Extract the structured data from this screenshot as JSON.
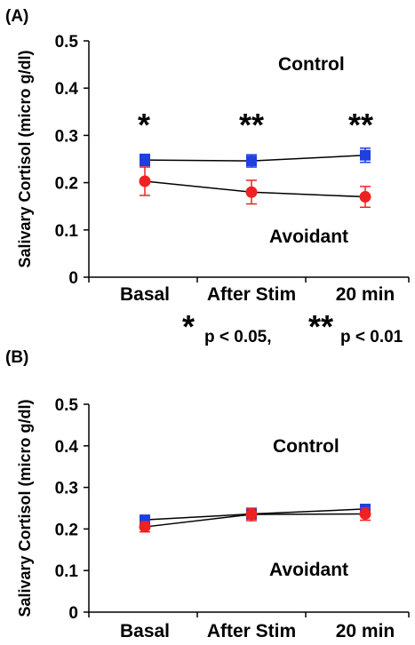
{
  "chart_data": [
    {
      "panel_label": "(A)",
      "type": "line",
      "categories": [
        "Basal",
        "After Stim",
        "20 min"
      ],
      "ylabel": "Salivary Cortisol (micro g/dl)",
      "ylim": [
        0,
        0.5
      ],
      "yticks": [
        "0",
        "0.1",
        "0.2",
        "0.3",
        "0.4",
        "0.5"
      ],
      "series": [
        {
          "name": "Control",
          "color": "#1f3fe0",
          "marker": "square",
          "values": [
            0.248,
            0.246,
            0.258
          ],
          "errors": [
            0.012,
            0.013,
            0.015
          ]
        },
        {
          "name": "Avoidant",
          "color": "#ee2222",
          "marker": "circle",
          "values": [
            0.203,
            0.18,
            0.17
          ],
          "errors": [
            0.03,
            0.025,
            0.022
          ]
        }
      ],
      "significance": [
        "*",
        "**",
        "**"
      ],
      "footnote": {
        "star1": "*",
        "text1": "p < 0.05,",
        "star2": "**",
        "text2": "p < 0.01"
      }
    },
    {
      "panel_label": "(B)",
      "type": "line",
      "categories": [
        "Basal",
        "After Stim",
        "20 min"
      ],
      "ylabel": "Salivary Cortisol (micro g/dl)",
      "ylim": [
        0,
        0.5
      ],
      "yticks": [
        "0",
        "0.1",
        "0.2",
        "0.3",
        "0.4",
        "0.5"
      ],
      "series": [
        {
          "name": "Control",
          "color": "#1f3fe0",
          "marker": "square",
          "values": [
            0.222,
            0.236,
            0.248
          ],
          "errors": [
            0.008,
            0.012,
            0.01
          ]
        },
        {
          "name": "Avoidant",
          "color": "#ee2222",
          "marker": "circle",
          "values": [
            0.205,
            0.235,
            0.236
          ],
          "errors": [
            0.012,
            0.015,
            0.015
          ]
        }
      ]
    }
  ]
}
